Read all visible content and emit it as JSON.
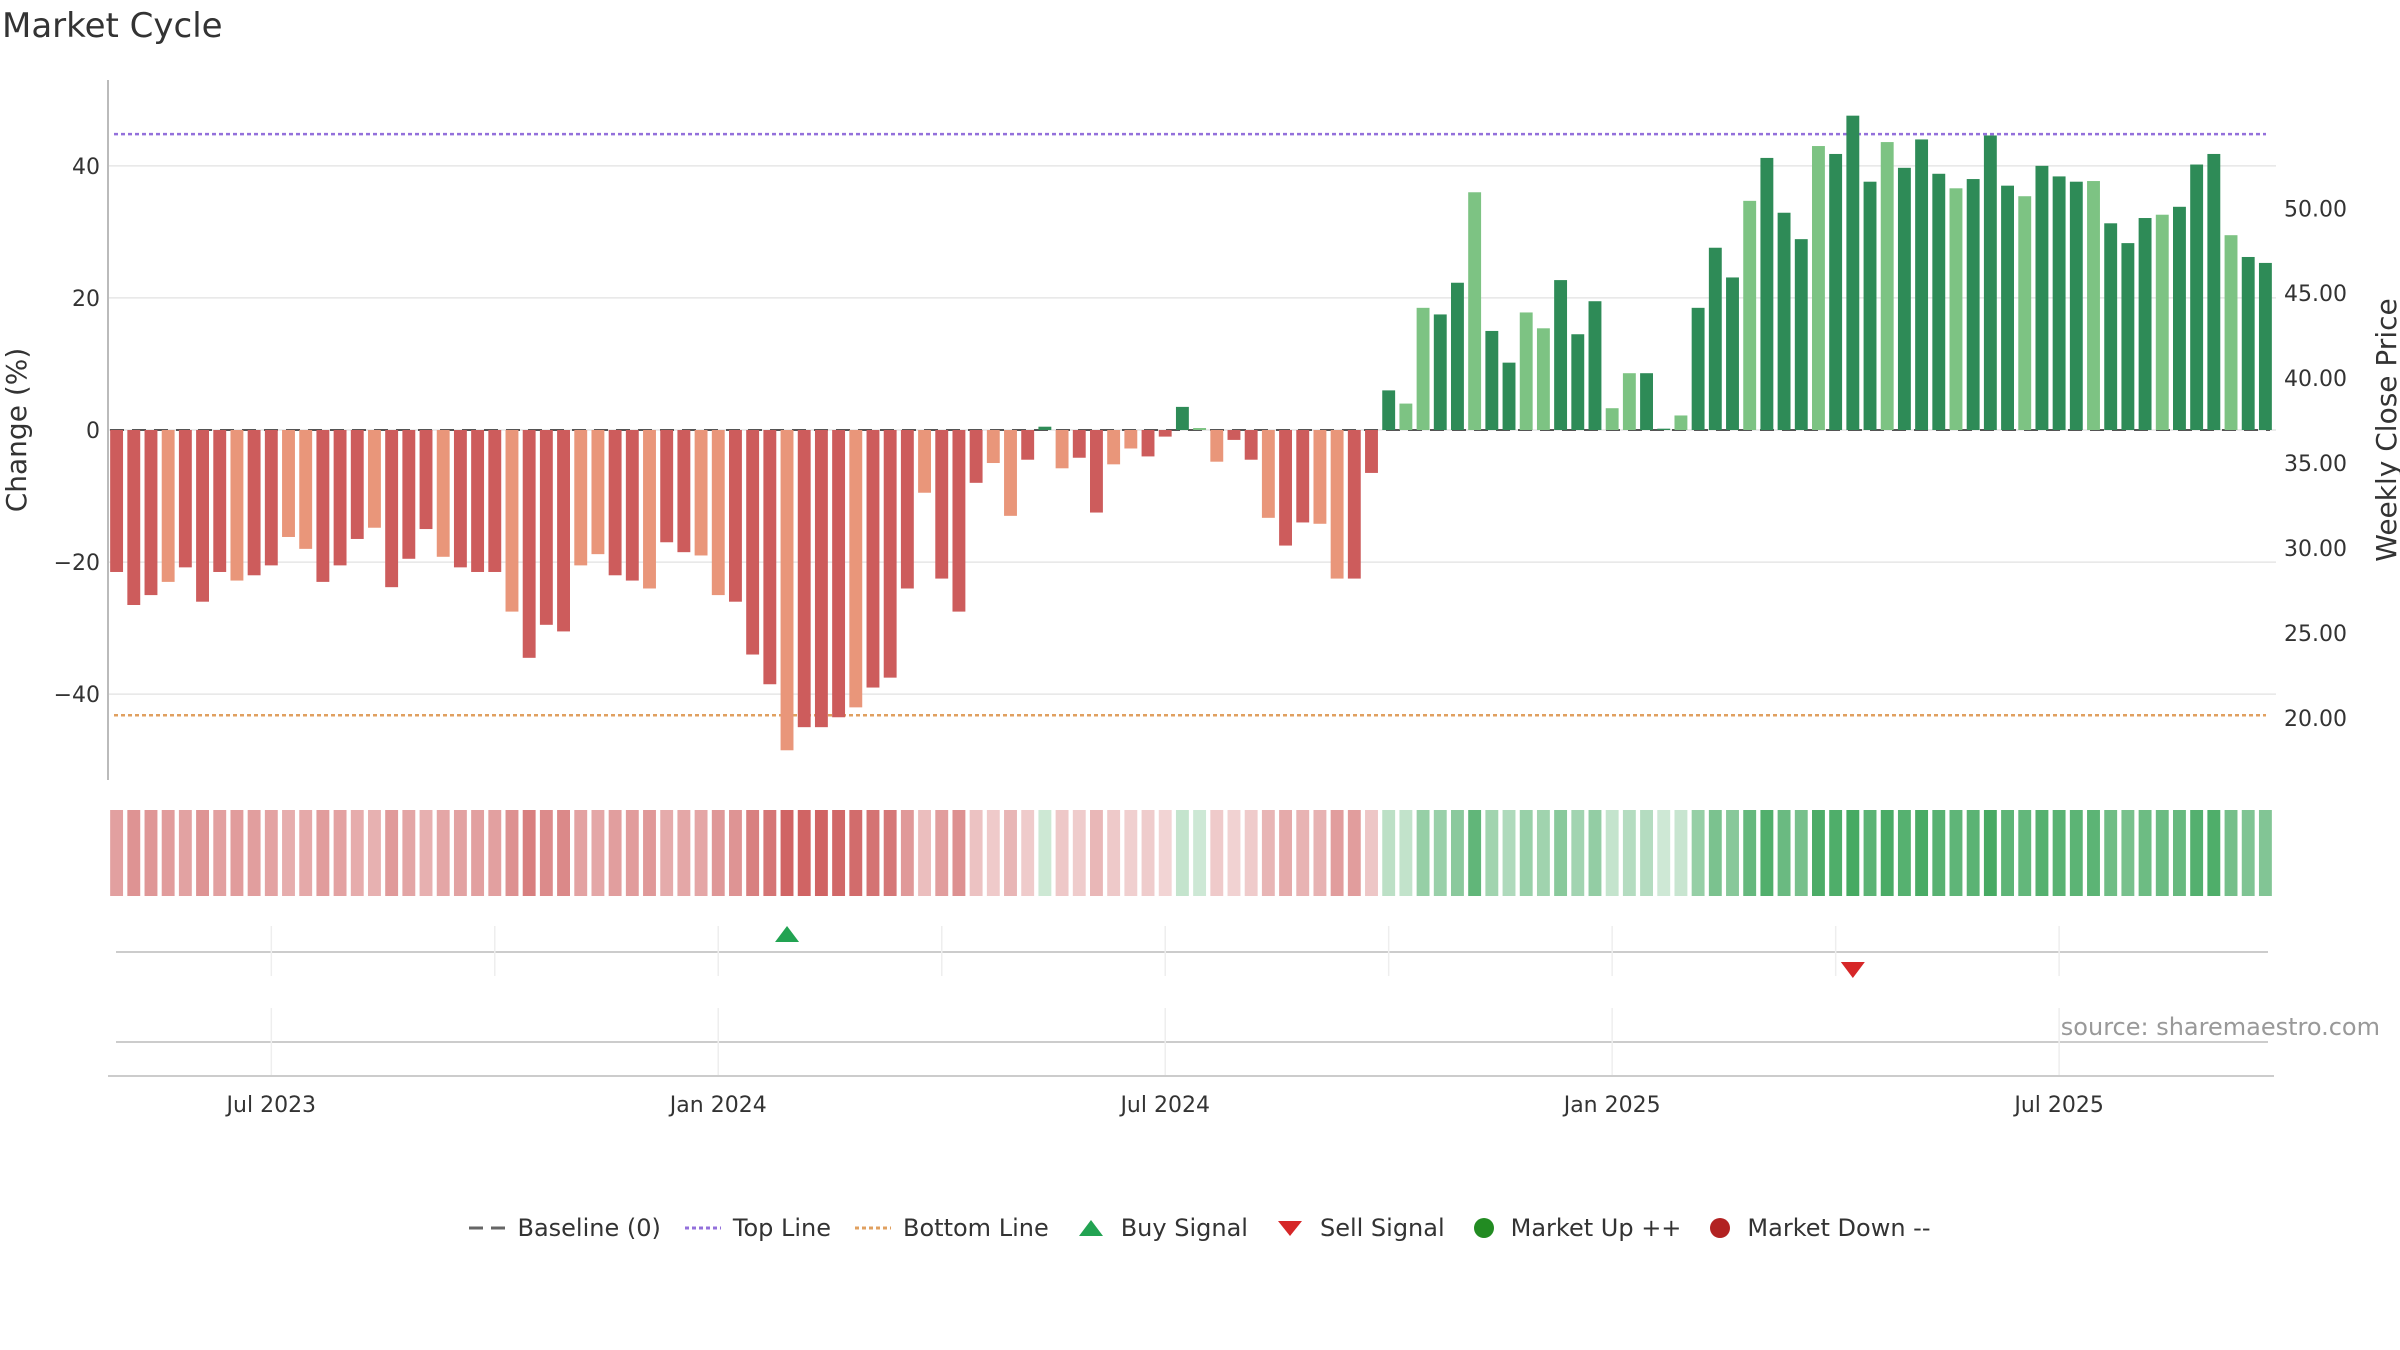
{
  "title": "Market Cycle",
  "source": "source: sharemaestro.com",
  "chart_data": {
    "type": "bar",
    "y_left": {
      "label": "Change (%)",
      "ticks": [
        -40,
        -20,
        0,
        20,
        40
      ],
      "range": [
        -53,
        53
      ]
    },
    "y_right": {
      "label": "Weekly Close Price",
      "ticks": [
        "20.00",
        "25.00",
        "30.00",
        "35.00",
        "40.00",
        "45.00",
        "50.00"
      ],
      "range": [
        16.35,
        57.55
      ]
    },
    "x_ticks": [
      {
        "label": "Jul 2023",
        "index": 9
      },
      {
        "label": "Jan 2024",
        "index": 35
      },
      {
        "label": "Jul 2024",
        "index": 61
      },
      {
        "label": "Jan 2025",
        "index": 87
      },
      {
        "label": "Jul 2025",
        "index": 113
      }
    ],
    "reference_lines": {
      "top": 44.8,
      "bottom": -43.2,
      "baseline": 0
    },
    "weekly_change": [
      -21.5,
      -26.5,
      -25,
      -23,
      -20.8,
      -26,
      -21.5,
      -22.8,
      -22,
      -20.5,
      -16.2,
      -18,
      -23,
      -20.5,
      -16.5,
      -14.8,
      -23.8,
      -19.5,
      -15,
      -19.2,
      -20.8,
      -21.5,
      -21.5,
      -27.5,
      -34.5,
      -29.5,
      -30.5,
      -20.5,
      -18.8,
      -22,
      -22.8,
      -24,
      -17,
      -18.5,
      -19,
      -25,
      -26,
      -34,
      -38.5,
      -48.5,
      -45,
      -45,
      -43.5,
      -42,
      -39,
      -37.5,
      -24,
      -9.5,
      -22.5,
      -27.5,
      -8,
      -5,
      -13,
      -4.5,
      0.5,
      -5.8,
      -4.2,
      -12.5,
      -5.2,
      -2.8,
      -4,
      -1,
      3.5,
      0.3,
      -4.8,
      -1.5,
      -4.5,
      -13.3,
      -17.5,
      -14,
      -14.2,
      -22.5,
      -22.5,
      -6.5,
      6,
      4,
      18.5,
      17.5,
      22.3,
      36,
      15,
      10.2,
      17.8,
      15.4,
      22.7,
      14.5,
      19.5,
      3.3,
      8.6,
      8.6,
      0.2,
      2.2,
      18.5,
      27.6,
      23.1,
      34.7,
      41.2,
      32.9,
      28.9,
      43,
      41.8,
      47.6,
      37.6,
      43.6,
      39.7,
      44,
      38.8,
      36.6,
      38,
      44.6,
      37,
      35.4,
      40,
      38.4,
      37.6,
      37.7,
      31.3,
      28.3,
      32.1,
      32.6,
      33.8,
      40.2,
      41.8,
      29.5,
      26.2,
      25.3
    ],
    "signals": [
      {
        "type": "Buy Signal",
        "index": 39
      },
      {
        "type": "Sell Signal",
        "index": 101
      }
    ],
    "legend": [
      "Baseline (0)",
      "Top Line",
      "Bottom Line",
      "Buy Signal",
      "Sell Signal",
      "Market Up ++",
      "Market Down --"
    ],
    "colors": {
      "down_strong": "#cd5c5c",
      "down_light": "#e9967a",
      "up_strong": "#2e8b57",
      "up_light": "#7dc383",
      "top_line": "#9370db",
      "bottom_line": "#e0a060",
      "buy": "#22a352",
      "sell": "#d62728",
      "market_up": "#228b22",
      "market_down": "#b22222"
    }
  }
}
